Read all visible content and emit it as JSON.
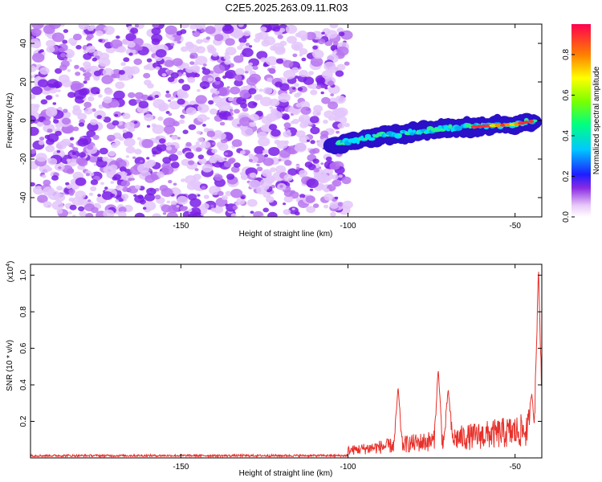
{
  "title": "C2E5.2025.263.09.11.R03",
  "chart_data": [
    {
      "type": "heatmap",
      "xlabel": "Height of straight line (km)",
      "ylabel": "Frequency (Hz)",
      "xlim": [
        -195,
        -42
      ],
      "ylim": [
        -50,
        50
      ],
      "x_ticks": [
        -150,
        -100,
        -50
      ],
      "x_tick_labels": [
        "-150",
        "-100",
        "-50"
      ],
      "y_ticks": [
        -40,
        -20,
        0,
        20,
        40
      ],
      "y_tick_labels": [
        "-40",
        "-20",
        "0",
        "20",
        "40"
      ],
      "colorbar": {
        "label": "Normalized spectral amplitude",
        "range": [
          0,
          0.95
        ],
        "ticks": [
          0,
          0.2,
          0.4,
          0.6,
          0.8
        ],
        "tick_labels": [
          "0.0",
          "0.2",
          "0.4",
          "0.6",
          "0.8"
        ]
      },
      "noise_region_x": [
        -195,
        -100
      ],
      "signal_trace": {
        "x": [
          -105,
          -100,
          -90,
          -80,
          -70,
          -60,
          -50,
          -44
        ],
        "freq": [
          -14,
          -11,
          -8,
          -6,
          -4,
          -3,
          -2,
          0
        ]
      }
    },
    {
      "type": "line",
      "xlabel": "Height of straight line (km)",
      "ylabel": "SNR (10 * v/v)",
      "multiplier_label": "(x10",
      "multiplier_exp": "4",
      "multiplier_close": ")",
      "xlim": [
        -195,
        -42
      ],
      "ylim": [
        0,
        1.06
      ],
      "x_ticks": [
        -150,
        -100,
        -50
      ],
      "x_tick_labels": [
        "-150",
        "-100",
        "-50"
      ],
      "y_ticks": [
        0.2,
        0.4,
        0.6,
        0.8,
        1.0
      ],
      "y_tick_labels": [
        "0.2",
        "0.4",
        "0.6",
        "0.8",
        "1.0"
      ],
      "series_color": "#e8302a",
      "baseline": 0.01,
      "rise_start_x": -100,
      "peaks": [
        {
          "x": -85,
          "y": 0.39
        },
        {
          "x": -73,
          "y": 0.49
        },
        {
          "x": -70,
          "y": 0.38
        },
        {
          "x": -45,
          "y": 0.35
        },
        {
          "x": -43,
          "y": 1.05
        }
      ]
    }
  ]
}
